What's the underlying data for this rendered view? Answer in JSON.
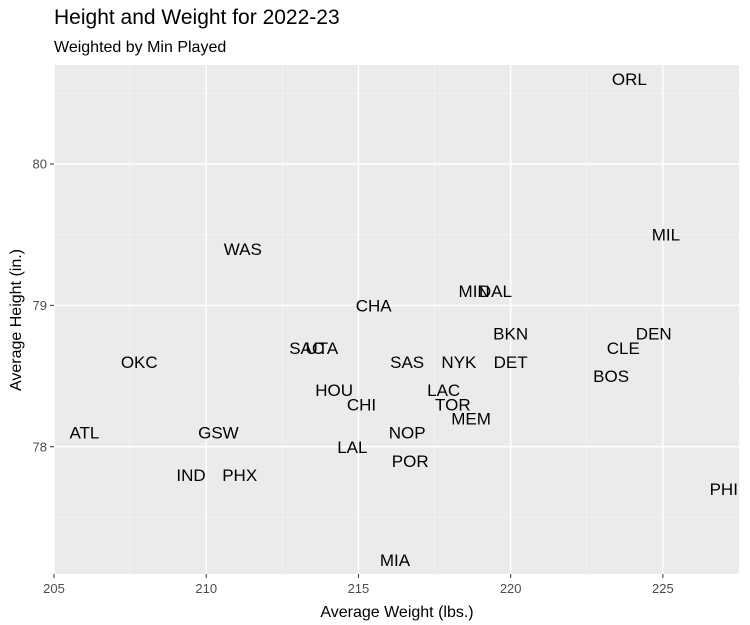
{
  "chart_data": {
    "type": "scatter",
    "title": "Height and Weight for 2022-23",
    "subtitle": "Weighted by Min Played",
    "xlabel": "Average Weight (lbs.)",
    "ylabel": "Average Height (in.)",
    "xlim": [
      205,
      227.5
    ],
    "ylim": [
      77.1,
      80.7
    ],
    "x_ticks": [
      205,
      210,
      215,
      220,
      225
    ],
    "x_tick_labels": [
      "205",
      "210",
      "215",
      "220",
      "225"
    ],
    "y_ticks": [
      78,
      79,
      80
    ],
    "y_tick_labels": [
      "78",
      "79",
      "80"
    ],
    "grid": true,
    "legend": "none",
    "points": [
      {
        "label": "ORL",
        "x": 223.9,
        "y": 80.6
      },
      {
        "label": "MIL",
        "x": 225.1,
        "y": 79.5
      },
      {
        "label": "WAS",
        "x": 211.2,
        "y": 79.4
      },
      {
        "label": "MIN",
        "x": 218.8,
        "y": 79.1
      },
      {
        "label": "DAL",
        "x": 219.5,
        "y": 79.1
      },
      {
        "label": "CHA",
        "x": 215.5,
        "y": 79.0
      },
      {
        "label": "BKN",
        "x": 220.0,
        "y": 78.8
      },
      {
        "label": "DEN",
        "x": 224.7,
        "y": 78.8
      },
      {
        "label": "SAC",
        "x": 213.3,
        "y": 78.7
      },
      {
        "label": "UTA",
        "x": 213.8,
        "y": 78.7
      },
      {
        "label": "CLE",
        "x": 223.7,
        "y": 78.7
      },
      {
        "label": "OKC",
        "x": 207.8,
        "y": 78.6
      },
      {
        "label": "SAS",
        "x": 216.6,
        "y": 78.6
      },
      {
        "label": "NYK",
        "x": 218.3,
        "y": 78.6
      },
      {
        "label": "DET",
        "x": 220.0,
        "y": 78.6
      },
      {
        "label": "BOS",
        "x": 223.3,
        "y": 78.5
      },
      {
        "label": "HOU",
        "x": 214.2,
        "y": 78.4
      },
      {
        "label": "LAC",
        "x": 217.8,
        "y": 78.4
      },
      {
        "label": "CHI",
        "x": 215.1,
        "y": 78.3
      },
      {
        "label": "TOR",
        "x": 218.1,
        "y": 78.3
      },
      {
        "label": "MEM",
        "x": 218.7,
        "y": 78.2
      },
      {
        "label": "ATL",
        "x": 206.0,
        "y": 78.1
      },
      {
        "label": "GSW",
        "x": 210.4,
        "y": 78.1
      },
      {
        "label": "NOP",
        "x": 216.6,
        "y": 78.1
      },
      {
        "label": "LAL",
        "x": 214.8,
        "y": 78.0
      },
      {
        "label": "POR",
        "x": 216.7,
        "y": 77.9
      },
      {
        "label": "IND",
        "x": 209.5,
        "y": 77.8
      },
      {
        "label": "PHX",
        "x": 211.1,
        "y": 77.8
      },
      {
        "label": "PHI",
        "x": 227.0,
        "y": 77.7
      },
      {
        "label": "MIA",
        "x": 216.2,
        "y": 77.2
      }
    ]
  },
  "colors": {
    "panel_background": "#ebebeb",
    "grid_major": "#ffffff",
    "grid_minor": "#f5f5f5",
    "text": "#000000",
    "tick_text": "#4d4d4d",
    "tick_mark": "#333333"
  }
}
